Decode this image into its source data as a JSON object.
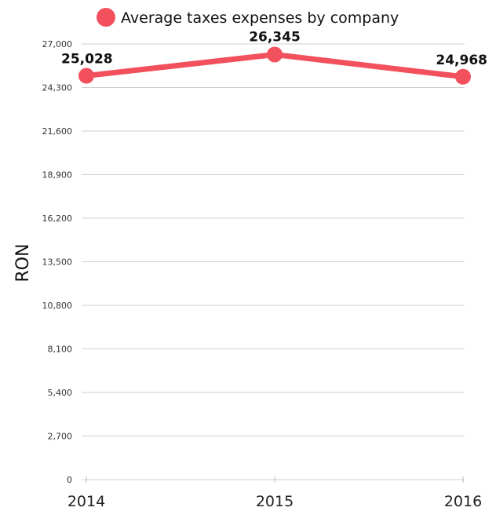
{
  "chart_data": {
    "type": "line",
    "title": "",
    "xlabel": "",
    "ylabel": "RON",
    "categories": [
      "2014",
      "2015",
      "2016"
    ],
    "series": [
      {
        "name": "Average taxes expenses by company",
        "values": [
          25028,
          26345,
          24968
        ],
        "labels": [
          "25,028",
          "26,345",
          "24,968"
        ],
        "color": "#f2505d"
      }
    ],
    "ylim": [
      0,
      27000
    ],
    "yticks": [
      0,
      2700,
      5400,
      8100,
      10800,
      13500,
      16200,
      18900,
      21600,
      24300,
      27000
    ],
    "ytick_labels": [
      "0",
      "2,700",
      "5,400",
      "8,100",
      "10,800",
      "13,500",
      "16,200",
      "18,900",
      "21,600",
      "24,300",
      "27,000"
    ],
    "grid": true,
    "legend_position": "top"
  }
}
